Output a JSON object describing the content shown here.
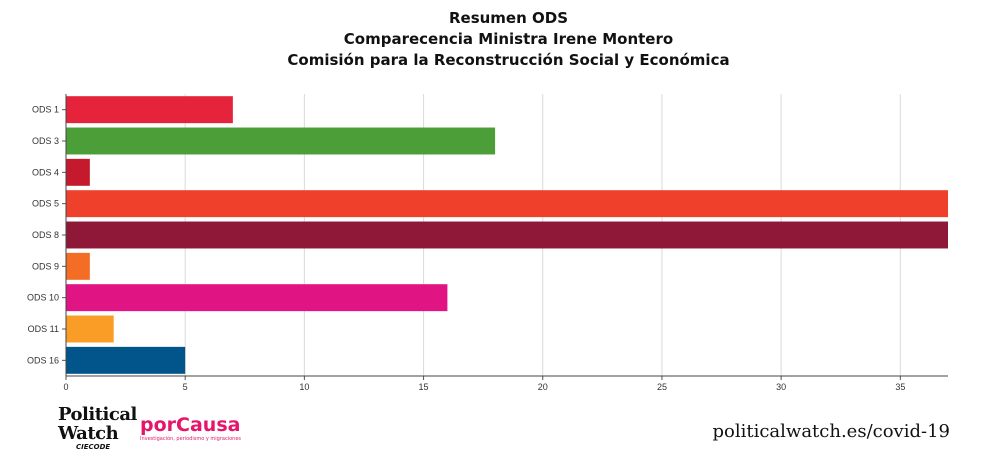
{
  "chart_data": {
    "type": "bar",
    "orientation": "horizontal",
    "title_lines": [
      "Resumen ODS",
      "Comparecencia Ministra Irene Montero",
      "Comisión para la Reconstrucción Social y Económica"
    ],
    "categories": [
      "ODS 1",
      "ODS 3",
      "ODS 4",
      "ODS 5",
      "ODS 8",
      "ODS 9",
      "ODS 10",
      "ODS 11",
      "ODS 16"
    ],
    "values": [
      7,
      18,
      1,
      37,
      37,
      1,
      16,
      2,
      5
    ],
    "colors": [
      "#e5243b",
      "#4c9f38",
      "#c5192d",
      "#ef402b",
      "#8f1838",
      "#f36d25",
      "#e11484",
      "#f99d26",
      "#02558b"
    ],
    "xlim": [
      0,
      37
    ],
    "xticks": [
      0,
      5,
      10,
      15,
      20,
      25,
      30,
      35
    ],
    "grid": true,
    "legend": "none"
  },
  "branding": {
    "political_watch": [
      "Political",
      "Watch",
      "CIECODE"
    ],
    "porcausa": "porCausa",
    "porcausa_tagline": "Investigación, periodismo y migraciones",
    "website": "politicalwatch.es/covid-19"
  }
}
